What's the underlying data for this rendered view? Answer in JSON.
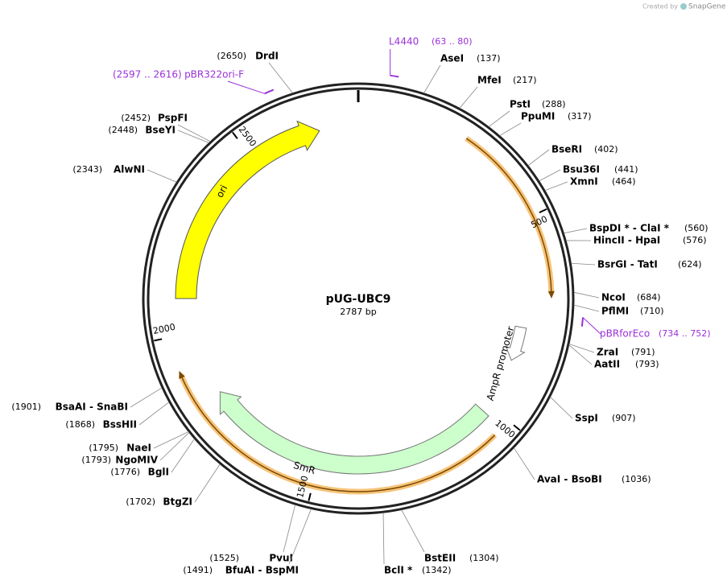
{
  "plasmid": {
    "name": "pUG-UBC9",
    "length": {
      "value": 2787,
      "label": "2787 bp"
    }
  },
  "credit": {
    "prefix": "Created by",
    "brand": "SnapGene"
  },
  "ticks": [
    500,
    1000,
    1500,
    2000,
    2500
  ],
  "enzymes": [
    {
      "label": "AseI",
      "site": {
        "value": 137,
        "label": "(137)"
      }
    },
    {
      "label": "MfeI",
      "site": {
        "value": 217,
        "label": "(217)"
      }
    },
    {
      "label": "PstI",
      "site": {
        "value": 288,
        "label": "(288)"
      }
    },
    {
      "label": "PpuMI",
      "site": {
        "value": 317,
        "label": "(317)"
      }
    },
    {
      "label": "BseRI",
      "site": {
        "value": 402,
        "label": "(402)"
      }
    },
    {
      "label": "Bsu36I",
      "site": {
        "value": 441,
        "label": "(441)"
      }
    },
    {
      "label": "XmnI",
      "site": {
        "value": 464,
        "label": "(464)"
      }
    },
    {
      "label": "BspDI * - ClaI *",
      "site": {
        "value": 560,
        "label": "(560)"
      }
    },
    {
      "label": "HincII - HpaI",
      "site": {
        "value": 576,
        "label": "(576)"
      }
    },
    {
      "label": "BsrGI - TatI",
      "site": {
        "value": 624,
        "label": "(624)"
      }
    },
    {
      "label": "NcoI",
      "site": {
        "value": 684,
        "label": "(684)"
      }
    },
    {
      "label": "PflMI",
      "site": {
        "value": 710,
        "label": "(710)"
      }
    },
    {
      "label": "ZraI",
      "site": {
        "value": 791,
        "label": "(791)"
      }
    },
    {
      "label": "AatII",
      "site": {
        "value": 793,
        "label": "(793)"
      }
    },
    {
      "label": "SspI",
      "site": {
        "value": 907,
        "label": "(907)"
      }
    },
    {
      "label": "AvaI - BsoBI",
      "site": {
        "value": 1036,
        "label": "(1036)"
      }
    },
    {
      "label": "BstEII",
      "site": {
        "value": 1304,
        "label": "(1304)"
      }
    },
    {
      "label": "BclI *",
      "site": {
        "value": 1342,
        "label": "(1342)"
      }
    },
    {
      "label": "PvuI",
      "site": {
        "value": 1525,
        "label": "(1525)"
      }
    },
    {
      "label": "BfuAI - BspMI",
      "site": {
        "value": 1491,
        "label": "(1491)"
      }
    },
    {
      "label": "BtgZI",
      "site": {
        "value": 1702,
        "label": "(1702)"
      }
    },
    {
      "label": "BglI",
      "site": {
        "value": 1776,
        "label": "(1776)"
      }
    },
    {
      "label": "NgoMIV",
      "site": {
        "value": 1793,
        "label": "(1793)"
      }
    },
    {
      "label": "NaeI",
      "site": {
        "value": 1795,
        "label": "(1795)"
      }
    },
    {
      "label": "BssHII",
      "site": {
        "value": 1868,
        "label": "(1868)"
      }
    },
    {
      "label": "BsaAI - SnaBI",
      "site": {
        "value": 1901,
        "label": "(1901)"
      }
    },
    {
      "label": "AlwNI",
      "site": {
        "value": 2343,
        "label": "(2343)"
      }
    },
    {
      "label": "BseYI",
      "site": {
        "value": 2448,
        "label": "(2448)"
      }
    },
    {
      "label": "PspFI",
      "site": {
        "value": 2452,
        "label": "(2452)"
      }
    },
    {
      "label": "DrdI",
      "site": {
        "value": 2650,
        "label": "(2650)"
      }
    }
  ],
  "primers": [
    {
      "label": "L4440",
      "range": {
        "start": 63,
        "end": 80,
        "label": "(63 .. 80)"
      }
    },
    {
      "label": "pBR322ori-F",
      "range": {
        "start": 2597,
        "end": 2616,
        "label": "(2597 .. 2616)"
      }
    },
    {
      "label": "pBRforEco",
      "range": {
        "start": 734,
        "end": 752,
        "label": "(734 .. 752)"
      }
    }
  ],
  "features": {
    "ori": "ori",
    "smr": "SmR",
    "ampr_promoter": "AmpR promoter"
  }
}
